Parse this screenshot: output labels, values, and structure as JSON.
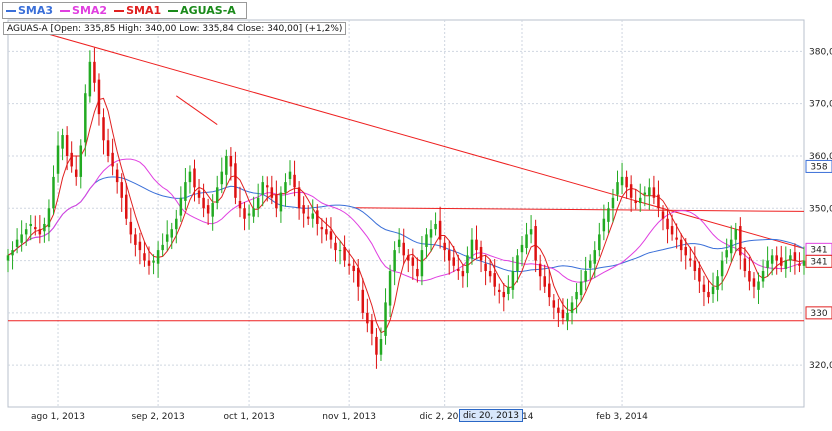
{
  "legend": [
    {
      "label": "SMA3",
      "color": "#3a6fd8"
    },
    {
      "label": "SMA2",
      "color": "#e040e0"
    },
    {
      "label": "SMA1",
      "color": "#e02020"
    },
    {
      "label": "AGUAS-A",
      "color": "#1a8a1a"
    }
  ],
  "ohlc_text": "AGUAS-A [Open: 335,85  High: 340,00  Low: 335,84  Close: 340,00] (+1,2%)",
  "selected_date_label": "dic 20, 2013",
  "colors": {
    "up": "#22aa22",
    "down": "#dd1111",
    "sma3": "#3a6fd8",
    "sma2": "#e040e0",
    "sma1": "#e02020",
    "trendline": "#ee2020",
    "grid": "#cfd6e0",
    "badge_sma3": "#3a6fd8",
    "badge_sma2": "#e040e0",
    "badge_sma1": "#e02020",
    "badge_level": "#e02020"
  },
  "chart_data": {
    "type": "candlestick",
    "ylim": [
      312,
      386
    ],
    "y_ticks": [
      320,
      330,
      340,
      350,
      360,
      370,
      380
    ],
    "y_tick_labels": [
      "320,0",
      "330,0",
      "340,0",
      "350,0",
      "360,0",
      "370,0",
      "380,0"
    ],
    "x_range": [
      0,
      175
    ],
    "x_ticks": [
      {
        "x": 11,
        "label": "ago 1, 2013"
      },
      {
        "x": 33,
        "label": "sep 2, 2013"
      },
      {
        "x": 53,
        "label": "oct 1, 2013"
      },
      {
        "x": 75,
        "label": "nov 1, 2013"
      },
      {
        "x": 96,
        "label": "dic 2, 2013"
      },
      {
        "x": 113,
        "label": "2014"
      },
      {
        "x": 135,
        "label": "feb 3, 2014"
      }
    ],
    "right_badges": [
      {
        "value": 358,
        "label": "358",
        "color_key": "badge_sma3"
      },
      {
        "value": 341,
        "label": "341",
        "color_key": "badge_sma2"
      },
      {
        "value": 341,
        "label": "341",
        "color_key": "badge_sma1"
      },
      {
        "value": 330,
        "label": "330",
        "color_key": "badge_level"
      }
    ],
    "closes": [
      341,
      342,
      344,
      345,
      346,
      347,
      346,
      345,
      347,
      350,
      356,
      362,
      364,
      360,
      358,
      356,
      362,
      372,
      378,
      374,
      368,
      363,
      360,
      358,
      355,
      352,
      348,
      345,
      343,
      342,
      340,
      339,
      340,
      342,
      343,
      345,
      346,
      348,
      352,
      355,
      357,
      354,
      352,
      350,
      349,
      351,
      354,
      357,
      360,
      358,
      352,
      350,
      348,
      349,
      350,
      352,
      355,
      354,
      352,
      350,
      353,
      355,
      357,
      354,
      350,
      349,
      348,
      349,
      347,
      346,
      345,
      344,
      342,
      342,
      340,
      339,
      338,
      335,
      330,
      328,
      326,
      322,
      325,
      332,
      338,
      342,
      344,
      341,
      340,
      339,
      337,
      342,
      345,
      346,
      347,
      344,
      342,
      340,
      339,
      338,
      337,
      341,
      344,
      342,
      340,
      338,
      337,
      335,
      334,
      333,
      335,
      338,
      341,
      343,
      345,
      346,
      340,
      337,
      335,
      333,
      331,
      330,
      329,
      330,
      332,
      334,
      336,
      338,
      340,
      342,
      345,
      348,
      350,
      352,
      355,
      356,
      354,
      352,
      351,
      352,
      353,
      354,
      352,
      350,
      348,
      346,
      345,
      344,
      342,
      341,
      340,
      338,
      336,
      334,
      333,
      335,
      337,
      340,
      342,
      344,
      346,
      341,
      338,
      336,
      335,
      336,
      338,
      340,
      341,
      340,
      339,
      340,
      341,
      340,
      339,
      340
    ],
    "sma_note": "SMA lines are moving averages of the close series",
    "sma_periods": {
      "SMA1": 5,
      "SMA2": 20,
      "SMA3": 40
    },
    "trendlines": [
      {
        "name": "descending-resistance",
        "x0": 0,
        "y0": 385.5,
        "x1": 175,
        "y1": 342.3
      },
      {
        "name": "short-down-line",
        "x0": 37,
        "y0": 371.5,
        "x1": 46,
        "y1": 366.0
      },
      {
        "name": "flat-resistance",
        "x0": 76,
        "y0": 350.1,
        "x1": 175,
        "y1": 349.4
      },
      {
        "name": "support",
        "x0": 0,
        "y0": 328.5,
        "x1": 175,
        "y1": 328.5
      }
    ]
  }
}
